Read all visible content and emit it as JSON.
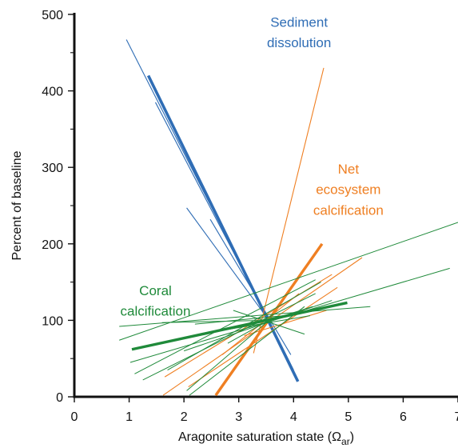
{
  "chart_data": {
    "type": "line",
    "xlabel_main": "Aragonite saturation state (Ω",
    "xlabel_sub": "ar",
    "xlabel_end": ")",
    "ylabel": "Percent of baseline",
    "xlim": [
      0,
      7
    ],
    "ylim": [
      0,
      500
    ],
    "x_ticks": [
      0,
      1,
      2,
      3,
      4,
      5,
      6,
      7
    ],
    "y_ticks": [
      0,
      100,
      200,
      300,
      400,
      500
    ],
    "y_minor_ticks": [
      50,
      150,
      250,
      350,
      450
    ],
    "pivot": {
      "x": 3.55,
      "y": 100
    },
    "annotations": [
      {
        "text": "Sediment",
        "x": 4.1,
        "y": 484,
        "color": "#2f6db5"
      },
      {
        "text": "dissolution",
        "x": 4.1,
        "y": 457,
        "color": "#2f6db5"
      },
      {
        "text": "Net",
        "x": 5.0,
        "y": 292,
        "color": "#ef7f22"
      },
      {
        "text": "ecosystem",
        "x": 5.0,
        "y": 265,
        "color": "#ef7f22"
      },
      {
        "text": "calcification",
        "x": 5.0,
        "y": 238,
        "color": "#ef7f22"
      },
      {
        "text": "Coral",
        "x": 1.48,
        "y": 133,
        "color": "#1f8a3a"
      },
      {
        "text": "calcification",
        "x": 1.48,
        "y": 106,
        "color": "#1f8a3a"
      }
    ],
    "series": [
      {
        "color": "#2f6db5",
        "lines": [
          {
            "x": [
              1.35,
              4.08
            ],
            "y": [
              420,
              20
            ],
            "width": 3.6
          },
          {
            "x": [
              0.95,
              3.55
            ],
            "y": [
              467,
              100
            ],
            "width": 1.1
          },
          {
            "x": [
              2.48,
              3.95
            ],
            "y": [
              232,
              55
            ],
            "width": 1.1
          },
          {
            "x": [
              2.05,
              3.55
            ],
            "y": [
              247,
              100
            ],
            "width": 1.1
          },
          {
            "x": [
              1.48,
              3.55
            ],
            "y": [
              385,
              100
            ],
            "width": 1.1
          },
          {
            "x": [
              3.55,
              4.0
            ],
            "y": [
              100,
              35
            ],
            "width": 1.1
          }
        ]
      },
      {
        "color": "#ef7f22",
        "lines": [
          {
            "x": [
              2.58,
              4.52
            ],
            "y": [
              2,
              200
            ],
            "width": 3.4
          },
          {
            "x": [
              3.27,
              4.55
            ],
            "y": [
              57,
              430
            ],
            "width": 1.1
          },
          {
            "x": [
              1.62,
              5.25
            ],
            "y": [
              2,
              182
            ],
            "width": 1.1
          },
          {
            "x": [
              1.65,
              4.7
            ],
            "y": [
              26,
              160
            ],
            "width": 1.1
          },
          {
            "x": [
              2.08,
              4.8
            ],
            "y": [
              13,
              143
            ],
            "width": 1.1
          },
          {
            "x": [
              2.7,
              4.1
            ],
            "y": [
              55,
              135
            ],
            "width": 1.1
          },
          {
            "x": [
              3.1,
              4.6
            ],
            "y": [
              80,
              113
            ],
            "width": 1.1
          }
        ]
      },
      {
        "color": "#1f8a3a",
        "lines": [
          {
            "x": [
              1.05,
              4.98
            ],
            "y": [
              62,
              123
            ],
            "width": 3.4
          },
          {
            "x": [
              0.82,
              7.0
            ],
            "y": [
              74,
              228
            ],
            "width": 1.0
          },
          {
            "x": [
              0.82,
              5.4
            ],
            "y": [
              92,
              118
            ],
            "width": 1.0
          },
          {
            "x": [
              1.02,
              6.85
            ],
            "y": [
              45,
              168
            ],
            "width": 1.0
          },
          {
            "x": [
              1.1,
              4.4
            ],
            "y": [
              30,
              153
            ],
            "width": 1.0
          },
          {
            "x": [
              1.7,
              4.5
            ],
            "y": [
              35,
              150
            ],
            "width": 1.0
          },
          {
            "x": [
              2.1,
              4.2
            ],
            "y": [
              2,
              118
            ],
            "width": 1.0
          },
          {
            "x": [
              2.0,
              4.7
            ],
            "y": [
              60,
              126
            ],
            "width": 1.0
          },
          {
            "x": [
              1.25,
              4.4
            ],
            "y": [
              22,
              135
            ],
            "width": 1.0
          },
          {
            "x": [
              2.2,
              3.95
            ],
            "y": [
              95,
              107
            ],
            "width": 1.0
          },
          {
            "x": [
              2.45,
              4.3
            ],
            "y": [
              84,
              106
            ],
            "width": 1.0
          },
          {
            "x": [
              1.6,
              3.55
            ],
            "y": [
              97,
              100
            ],
            "width": 1.0
          },
          {
            "x": [
              2.9,
              4.2
            ],
            "y": [
              113,
              82
            ],
            "width": 1.0
          },
          {
            "x": [
              2.05,
              3.55
            ],
            "y": [
              8,
              100
            ],
            "width": 1.0
          },
          {
            "x": [
              2.8,
              3.55
            ],
            "y": [
              70,
              100
            ],
            "width": 1.0
          },
          {
            "x": [
              3.55,
              4.35
            ],
            "y": [
              100,
              118
            ],
            "width": 1.0
          }
        ]
      }
    ]
  }
}
